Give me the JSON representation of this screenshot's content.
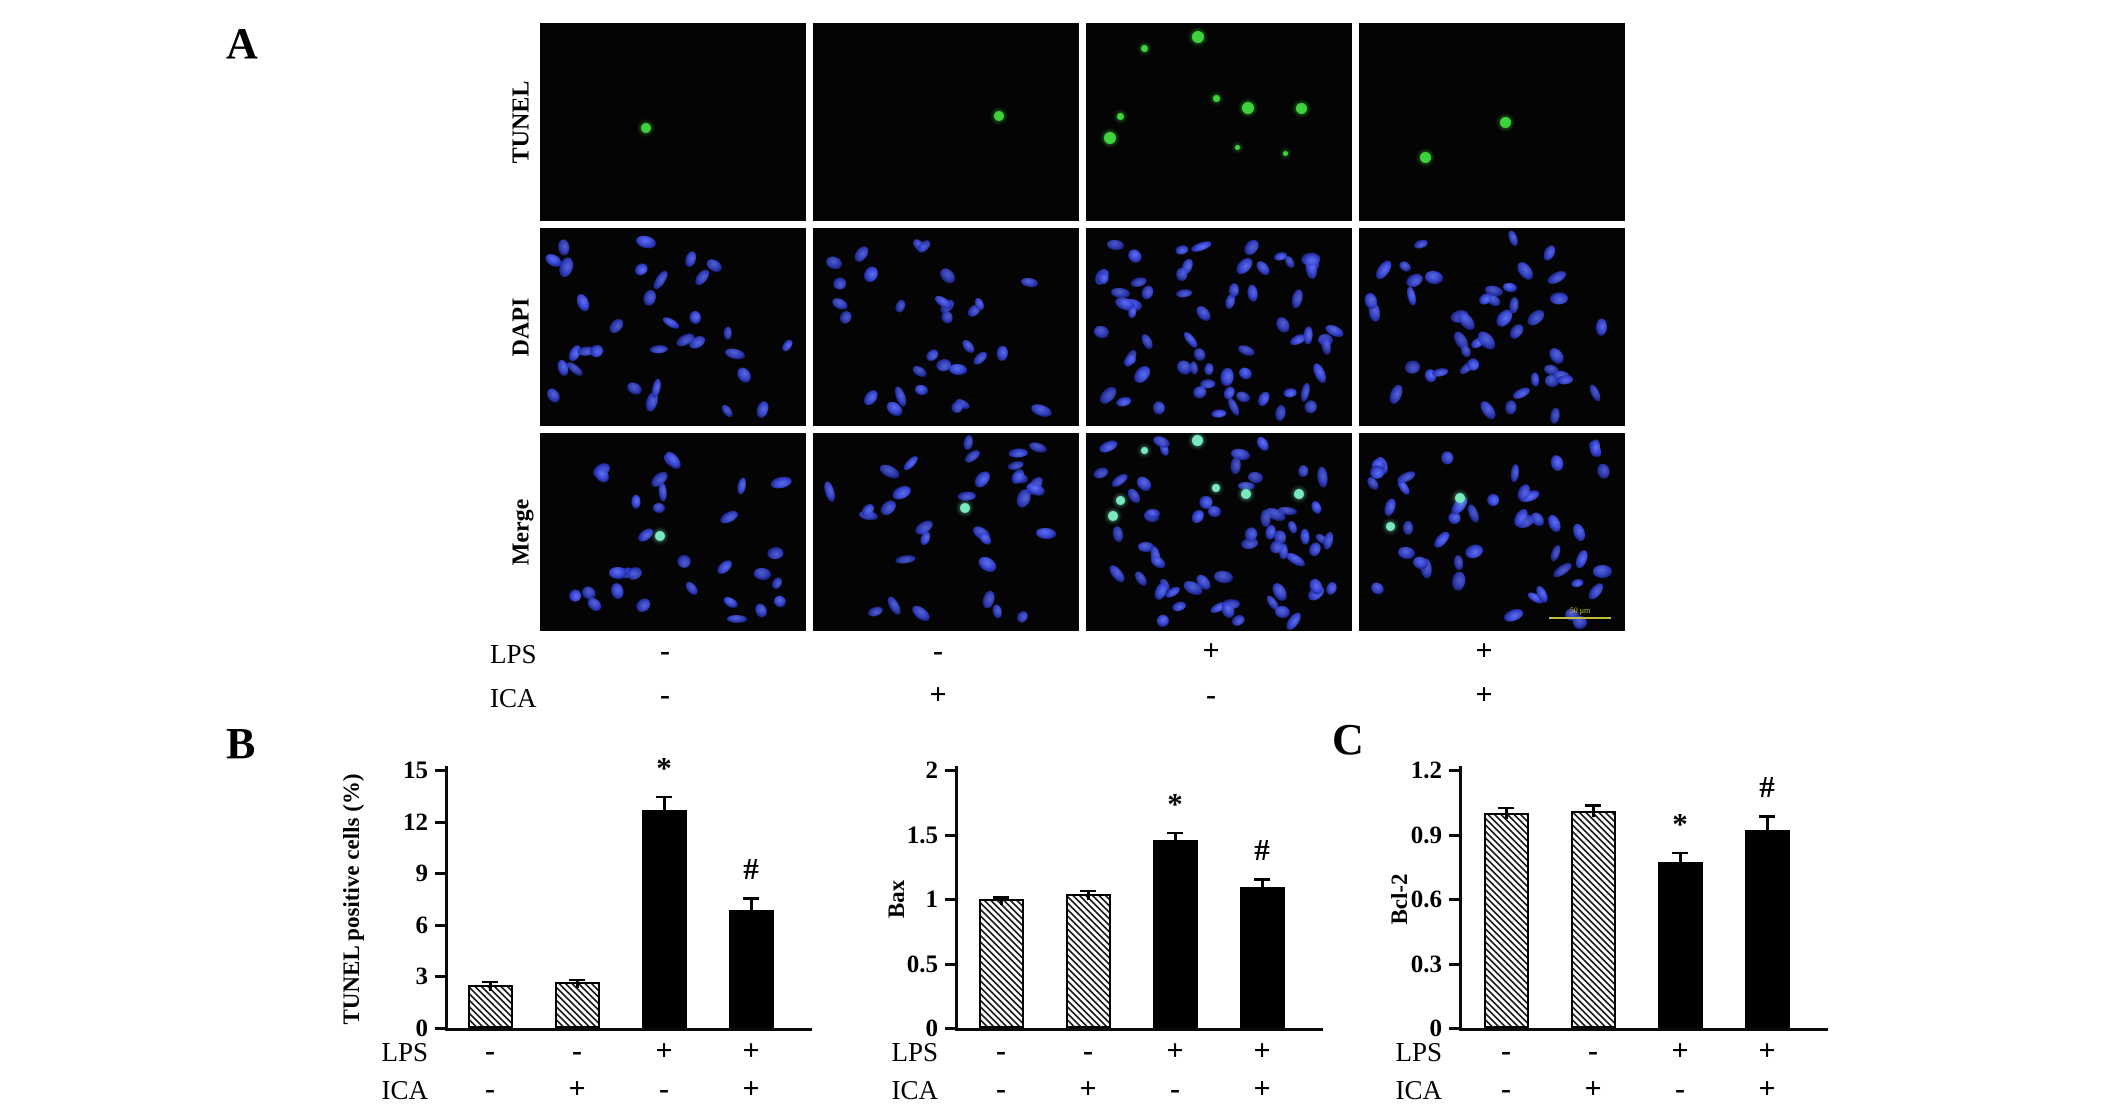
{
  "panel_a": {
    "label": "A",
    "row_labels": [
      "TUNEL",
      "DAPI",
      "Merge"
    ],
    "conditions": {
      "lps_label": "LPS",
      "ica_label": "ICA",
      "lps": [
        "-",
        "-",
        "+",
        "+"
      ],
      "ica": [
        "-",
        "+",
        "-",
        "+"
      ]
    },
    "scale_bar_text": "50 μm",
    "colors": {
      "tunel_green": "#3ed23c",
      "dapi_blue": "#3a49d8",
      "merge_cyan": "#7be9c0",
      "scale_bar_yellow": "#c3bd3f",
      "micrograph_bg": "#040404"
    },
    "tunel_dots": [
      [
        [
          0.4,
          0.53,
          1.0
        ]
      ],
      [
        [
          0.7,
          0.47,
          1.0
        ]
      ],
      [
        [
          0.42,
          0.07,
          1.2
        ],
        [
          0.22,
          0.13,
          0.7
        ],
        [
          0.49,
          0.38,
          0.7
        ],
        [
          0.61,
          0.43,
          1.2
        ],
        [
          0.81,
          0.43,
          1.1
        ],
        [
          0.13,
          0.47,
          0.7
        ],
        [
          0.09,
          0.58,
          1.2
        ],
        [
          0.57,
          0.63,
          0.5
        ],
        [
          0.75,
          0.66,
          0.5
        ]
      ],
      [
        [
          0.55,
          0.5,
          1.1
        ],
        [
          0.25,
          0.68,
          1.1
        ]
      ]
    ],
    "merge_dots": [
      [
        [
          0.45,
          0.52,
          1.0
        ]
      ],
      [
        [
          0.57,
          0.38,
          1.0
        ]
      ],
      [
        [
          0.42,
          0.04,
          1.1
        ],
        [
          0.22,
          0.09,
          0.7
        ],
        [
          0.49,
          0.28,
          0.8
        ],
        [
          0.6,
          0.31,
          1.0
        ],
        [
          0.8,
          0.31,
          1.0
        ],
        [
          0.13,
          0.34,
          0.9
        ],
        [
          0.1,
          0.42,
          1.0
        ]
      ],
      [
        [
          0.38,
          0.33,
          1.0
        ],
        [
          0.12,
          0.47,
          0.9
        ]
      ]
    ],
    "dapi_nuclei_counts": [
      32,
      30,
      62,
      45
    ],
    "merge_nuclei_counts": [
      30,
      32,
      60,
      44
    ]
  },
  "panel_b_label": "B",
  "panel_c_label": "C",
  "chart_data": [
    {
      "type": "bar",
      "panel": "B",
      "ylabel": "TUNEL positive cells (%)",
      "ylim": [
        0,
        15
      ],
      "yticks": [
        "0",
        "3",
        "6",
        "9",
        "12",
        "15"
      ],
      "values": [
        2.5,
        2.65,
        12.7,
        6.85
      ],
      "errors": [
        0.25,
        0.2,
        0.8,
        0.75
      ],
      "annotations": [
        "",
        "",
        "*",
        "#"
      ],
      "bar_styles": [
        "hatched",
        "hatched",
        "solid",
        "solid"
      ],
      "x_axis_rows": [
        {
          "label": "LPS",
          "values": [
            "-",
            "-",
            "+",
            "+"
          ]
        },
        {
          "label": "ICA",
          "values": [
            "-",
            "+",
            "-",
            "+"
          ]
        }
      ]
    },
    {
      "type": "bar",
      "panel": "B",
      "ylabel": "Bax",
      "ylim": [
        0,
        2
      ],
      "yticks": [
        "0",
        "0.5",
        "1",
        "1.5",
        "2"
      ],
      "values": [
        1.0,
        1.04,
        1.46,
        1.09
      ],
      "errors": [
        0.02,
        0.03,
        0.06,
        0.07
      ],
      "annotations": [
        "",
        "",
        "*",
        "#"
      ],
      "bar_styles": [
        "hatched",
        "hatched",
        "solid",
        "solid"
      ],
      "x_axis_rows": [
        {
          "label": "LPS",
          "values": [
            "-",
            "-",
            "+",
            "+"
          ]
        },
        {
          "label": "ICA",
          "values": [
            "-",
            "+",
            "-",
            "+"
          ]
        }
      ]
    },
    {
      "type": "bar",
      "panel": "C",
      "ylabel": "Bcl-2",
      "ylim": [
        0,
        1.2
      ],
      "yticks": [
        "0",
        "0.3",
        "0.6",
        "0.9",
        "1.2"
      ],
      "values": [
        1.0,
        1.01,
        0.77,
        0.92
      ],
      "errors": [
        0.03,
        0.03,
        0.05,
        0.07
      ],
      "annotations": [
        "",
        "",
        "*",
        "#"
      ],
      "bar_styles": [
        "hatched",
        "hatched",
        "solid",
        "solid"
      ],
      "x_axis_rows": [
        {
          "label": "LPS",
          "values": [
            "-",
            "-",
            "+",
            "+"
          ]
        },
        {
          "label": "ICA",
          "values": [
            "-",
            "+",
            "-",
            "+"
          ]
        }
      ]
    }
  ]
}
